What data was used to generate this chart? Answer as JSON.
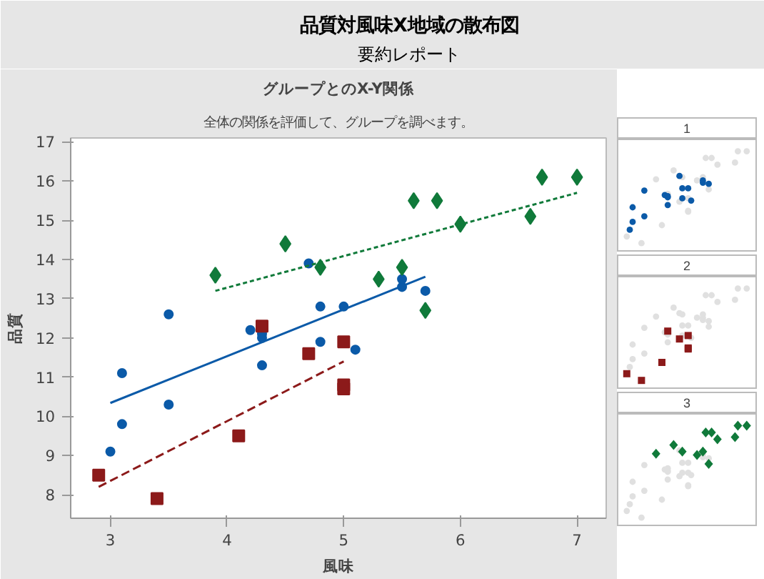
{
  "chart_data": [
    {
      "type": "other",
      "title": "品質対風味X地域の散布図",
      "subtitle": "要約レポート"
    },
    {
      "type": "scatter",
      "title": "グループとのX-Y関係",
      "subtitle": "全体の関係を評価して、グループを調べます。",
      "xlabel": "風味",
      "ylabel": "品質",
      "xlim": [
        2.66,
        7.25
      ],
      "ylim": [
        7.4,
        17.1
      ],
      "xticks": [
        3,
        4,
        5,
        6,
        7
      ],
      "yticks": [
        8,
        9,
        10,
        11,
        12,
        13,
        14,
        15,
        16,
        17
      ],
      "grid": false,
      "series": [
        {
          "type": "scatter",
          "marker": "circle",
          "color": "#0b5aa8",
          "x": [
            3.0,
            3.1,
            3.1,
            3.5,
            3.5,
            4.2,
            4.3,
            4.3,
            4.3,
            4.8,
            4.8,
            5.0,
            5.1,
            4.7,
            5.5,
            5.5,
            5.7
          ],
          "values": [
            9.1,
            11.1,
            9.8,
            10.3,
            12.6,
            12.2,
            12.1,
            12.0,
            11.3,
            12.8,
            11.9,
            12.8,
            11.7,
            13.9,
            13.5,
            13.3,
            13.2
          ]
        },
        {
          "type": "scatter",
          "marker": "square",
          "color": "#8c1a1a",
          "x": [
            2.9,
            3.4,
            4.1,
            4.3,
            4.7,
            5.0,
            5.0,
            5.0
          ],
          "values": [
            8.5,
            7.9,
            9.5,
            12.3,
            11.6,
            11.9,
            10.8,
            10.7
          ]
        },
        {
          "type": "scatter",
          "marker": "diamond",
          "color": "#107a3a",
          "x": [
            3.9,
            4.5,
            4.8,
            5.3,
            5.5,
            5.7,
            5.6,
            5.8,
            6.0,
            6.6,
            6.7,
            7.0
          ],
          "values": [
            13.6,
            14.4,
            13.8,
            13.5,
            13.8,
            12.7,
            15.5,
            15.5,
            14.9,
            15.1,
            16.1,
            16.1
          ]
        },
        {
          "type": "line",
          "line_style": "solid",
          "color": "#0b5aa8",
          "x": [
            3.0,
            5.7
          ],
          "values": [
            10.34,
            13.56
          ]
        },
        {
          "type": "line",
          "line_style": "dashed",
          "color": "#8c1a1a",
          "x": [
            2.9,
            5.0
          ],
          "values": [
            8.2,
            11.4
          ]
        },
        {
          "type": "line",
          "line_style": "dotted",
          "color": "#107a3a",
          "x": [
            3.9,
            7.0
          ],
          "values": [
            13.2,
            15.7
          ]
        }
      ]
    },
    {
      "type": "other",
      "title": "1"
    },
    {
      "type": "other",
      "title": "2"
    },
    {
      "type": "other",
      "title": "3"
    }
  ]
}
